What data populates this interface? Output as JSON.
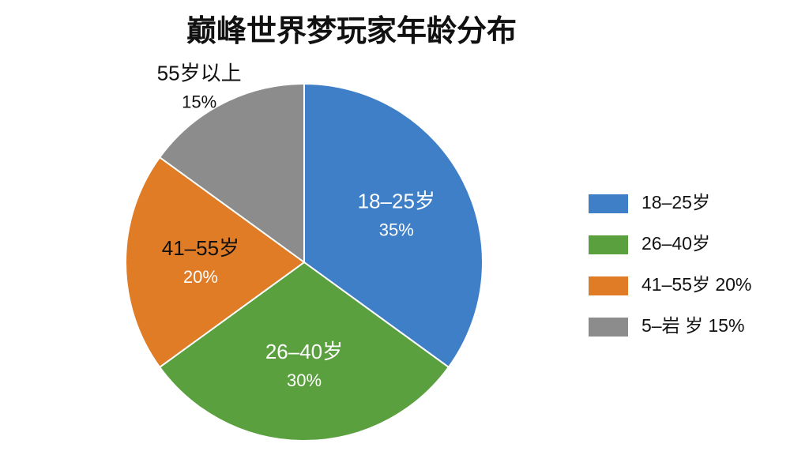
{
  "chart_data": {
    "type": "pie",
    "title": "巅峰世界梦玩家年龄分布",
    "categories": [
      "18–25岁",
      "26–40岁",
      "41–55岁",
      "55岁以上"
    ],
    "values": [
      35,
      30,
      20,
      15
    ],
    "value_labels": [
      "35%",
      "30%",
      "20%",
      "15%"
    ],
    "colors": [
      "#3f7fc8",
      "#5aa03f",
      "#e07b26",
      "#8c8c8c"
    ],
    "legend_labels": [
      "18–25岁",
      "26–40岁",
      "41–55岁  20%",
      "5–岩  岁  15%"
    ]
  }
}
